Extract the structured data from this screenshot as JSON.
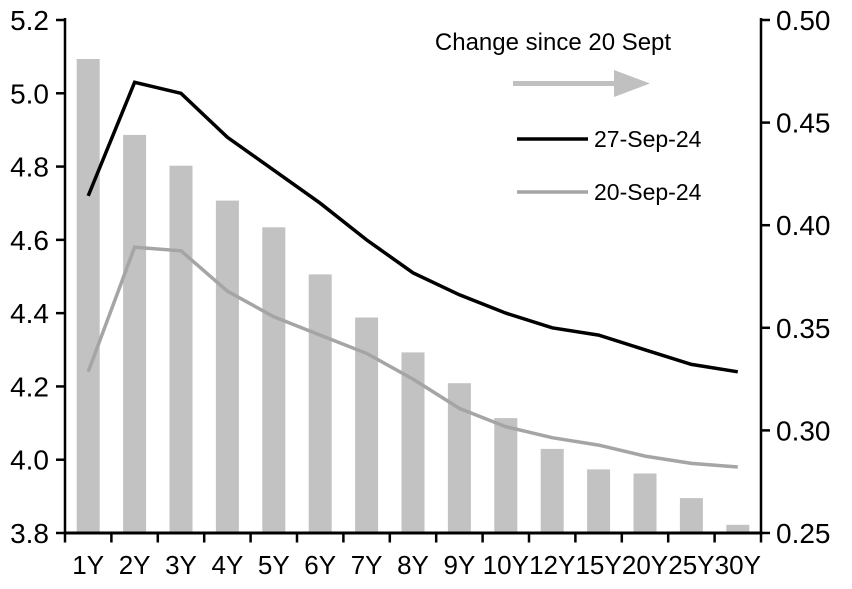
{
  "chart_data": {
    "type": "combo",
    "title": "",
    "categories": [
      "1Y",
      "2Y",
      "3Y",
      "4Y",
      "5Y",
      "6Y",
      "7Y",
      "8Y",
      "9Y",
      "10Y",
      "12Y",
      "15Y",
      "20Y",
      "25Y",
      "30Y"
    ],
    "series": [
      {
        "name": "Change since 20 Sept",
        "type": "bar",
        "axis": "right",
        "color": "#c2c2c2",
        "values": [
          0.481,
          0.444,
          0.429,
          0.412,
          0.399,
          0.376,
          0.355,
          0.338,
          0.323,
          0.306,
          0.291,
          0.281,
          0.279,
          0.267,
          0.254
        ]
      },
      {
        "name": "27-Sep-24",
        "type": "line",
        "axis": "left",
        "color": "#000000",
        "values": [
          4.72,
          5.03,
          5.0,
          4.88,
          4.79,
          4.7,
          4.6,
          4.51,
          4.45,
          4.4,
          4.36,
          4.34,
          4.3,
          4.26,
          4.24
        ]
      },
      {
        "name": "20-Sep-24",
        "type": "line",
        "axis": "left",
        "color": "#a5a5a5",
        "values": [
          4.24,
          4.58,
          4.57,
          4.46,
          4.39,
          4.34,
          4.29,
          4.22,
          4.14,
          4.09,
          4.06,
          4.04,
          4.01,
          3.99,
          3.98
        ]
      }
    ],
    "left_axis": {
      "min": 3.8,
      "max": 5.2,
      "step": 0.2,
      "tick_values": [
        3.8,
        4.0,
        4.2,
        4.4,
        4.6,
        4.8,
        5.0,
        5.2
      ],
      "tick_labels": [
        "3.8",
        "4.0",
        "4.2",
        "4.4",
        "4.6",
        "4.8",
        "5.0",
        "5.2"
      ]
    },
    "right_axis": {
      "min": 0.25,
      "max": 0.5,
      "step": 0.05,
      "tick_values": [
        0.25,
        0.3,
        0.35,
        0.4,
        0.45,
        0.5
      ],
      "tick_labels": [
        "0.25",
        "0.30",
        "0.35",
        "0.40",
        "0.45",
        "0.50"
      ]
    },
    "legend": {
      "title": "Change since 20 Sept",
      "arrow_color": "#c0c0c0",
      "entries": [
        "27-Sep-24",
        "20-Sep-24"
      ]
    },
    "grid": false,
    "background": "#ffffff"
  }
}
